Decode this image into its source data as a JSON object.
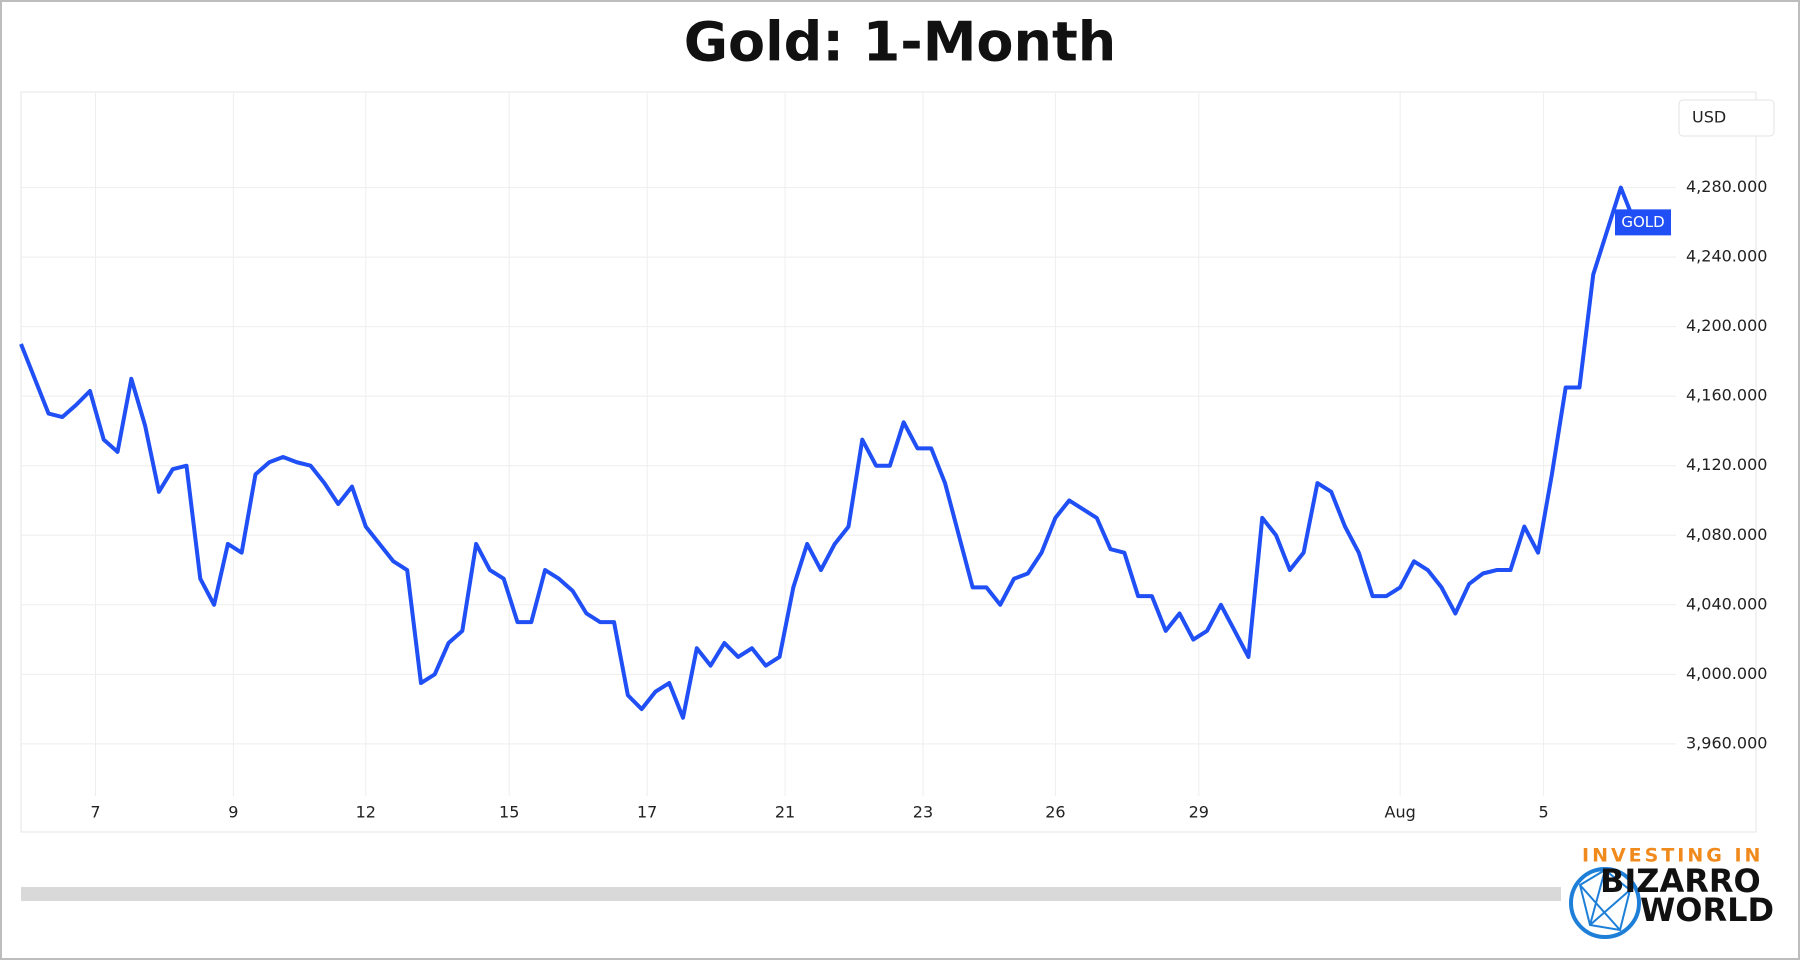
{
  "chart_data": {
    "type": "line",
    "title": "Gold: 1-Month",
    "currency": "USD",
    "ylim": [
      3930,
      4335
    ],
    "yticks": [
      {
        "value": 3960,
        "label": "3,960.000"
      },
      {
        "value": 4000,
        "label": "4,000.000"
      },
      {
        "value": 4040,
        "label": "4,040.000"
      },
      {
        "value": 4080,
        "label": "4,080.000"
      },
      {
        "value": 4120,
        "label": "4,120.000"
      },
      {
        "value": 4160,
        "label": "4,160.000"
      },
      {
        "value": 4200,
        "label": "4,200.000"
      },
      {
        "value": 4240,
        "label": "4,240.000"
      },
      {
        "value": 4280,
        "label": "4,280.000"
      }
    ],
    "xlim": [
      0,
      120
    ],
    "xticks": [
      {
        "value": 5.4,
        "label": "7"
      },
      {
        "value": 15.4,
        "label": "9"
      },
      {
        "value": 25,
        "label": "12"
      },
      {
        "value": 35.4,
        "label": "15"
      },
      {
        "value": 45.4,
        "label": "17"
      },
      {
        "value": 55.4,
        "label": "21"
      },
      {
        "value": 65.4,
        "label": "23"
      },
      {
        "value": 75,
        "label": "26"
      },
      {
        "value": 85.4,
        "label": "29"
      },
      {
        "value": 100,
        "label": "Aug"
      },
      {
        "value": 110.4,
        "label": "5"
      }
    ],
    "grid": true,
    "series": [
      {
        "name": "GOLD",
        "color": "#1f4ff5",
        "values": [
          4190,
          4170,
          4150,
          4148,
          4155,
          4163,
          4135,
          4128,
          4170,
          4143,
          4105,
          4118,
          4120,
          4055,
          4040,
          4075,
          4070,
          4115,
          4122,
          4125,
          4122,
          4120,
          4110,
          4098,
          4108,
          4085,
          4075,
          4065,
          4060,
          3995,
          4000,
          4018,
          4025,
          4075,
          4060,
          4055,
          4030,
          4030,
          4060,
          4055,
          4048,
          4035,
          4030,
          4030,
          3988,
          3980,
          3990,
          3995,
          3975,
          4015,
          4005,
          4018,
          4010,
          4015,
          4005,
          4010,
          4050,
          4075,
          4060,
          4075,
          4085,
          4135,
          4120,
          4120,
          4145,
          4130,
          4130,
          4110,
          4080,
          4050,
          4050,
          4040,
          4055,
          4058,
          4070,
          4090,
          4100,
          4095,
          4090,
          4072,
          4070,
          4045,
          4045,
          4025,
          4035,
          4020,
          4025,
          4040,
          4025,
          4010,
          4090,
          4080,
          4060,
          4070,
          4110,
          4105,
          4085,
          4070,
          4045,
          4045,
          4050,
          4065,
          4060,
          4050,
          4035,
          4052,
          4058,
          4060,
          4060,
          4085,
          4070,
          4115,
          4165,
          4165,
          4230,
          4255,
          4280,
          4260,
          4260
        ]
      }
    ]
  },
  "logo": {
    "line1": "INVESTING IN",
    "line2": "BIZARRO",
    "line3": "WORLD"
  }
}
